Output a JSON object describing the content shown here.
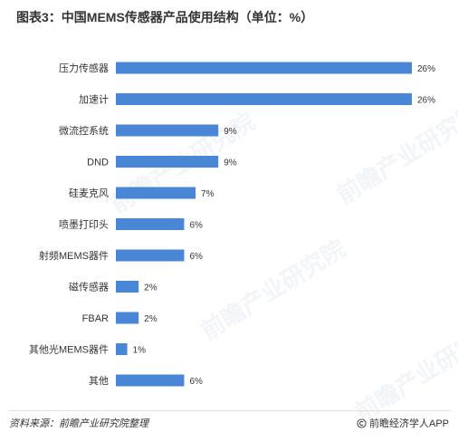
{
  "title": "图表3：中国MEMS传感器产品使用结构（单位：%）",
  "source": "资料来源：前瞻产业研究院整理",
  "brand": "前瞻经济学人APP",
  "watermark": "前瞻产业研究院",
  "colors": {
    "bar": "#4a86d6",
    "text": "#333333"
  },
  "icons": {
    "brand": "copyright-circle-icon"
  },
  "chart_data": {
    "type": "bar",
    "orientation": "horizontal",
    "categories": [
      "压力传感器",
      "加速计",
      "微流控系统",
      "DND",
      "硅麦克风",
      "喷墨打印头",
      "射频MEMS器件",
      "磁传感器",
      "FBAR",
      "其他光MEMS器件",
      "其他"
    ],
    "values": [
      26,
      26,
      9,
      9,
      7,
      6,
      6,
      2,
      2,
      1,
      6
    ],
    "value_labels": [
      "26%",
      "26%",
      "9%",
      "9%",
      "7%",
      "6%",
      "6%",
      "2%",
      "2%",
      "1%",
      "6%"
    ],
    "unit": "%",
    "xlim": [
      0,
      26
    ],
    "grid": false,
    "legend": "none"
  }
}
